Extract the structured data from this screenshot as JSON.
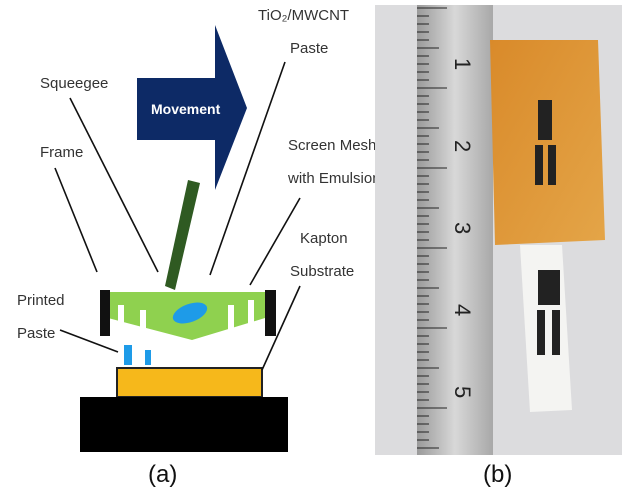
{
  "panel_a": {
    "movement": "Movement",
    "labels": [
      {
        "lines": [
          "TiO₂/MWCNT",
          "Paste"
        ]
      },
      {
        "lines": [
          "Squeegee"
        ]
      },
      {
        "lines": [
          "Screen Mesh",
          "with Emulsion"
        ]
      },
      {
        "lines": [
          "Frame"
        ]
      },
      {
        "lines": [
          "Kapton",
          "Substrate"
        ]
      },
      {
        "lines": [
          "Printed",
          "Paste"
        ]
      }
    ],
    "caption": "(a)"
  },
  "panel_b": {
    "ruler_numbers": [
      "1",
      "2",
      "3",
      "4",
      "5"
    ],
    "caption": "(b)"
  }
}
